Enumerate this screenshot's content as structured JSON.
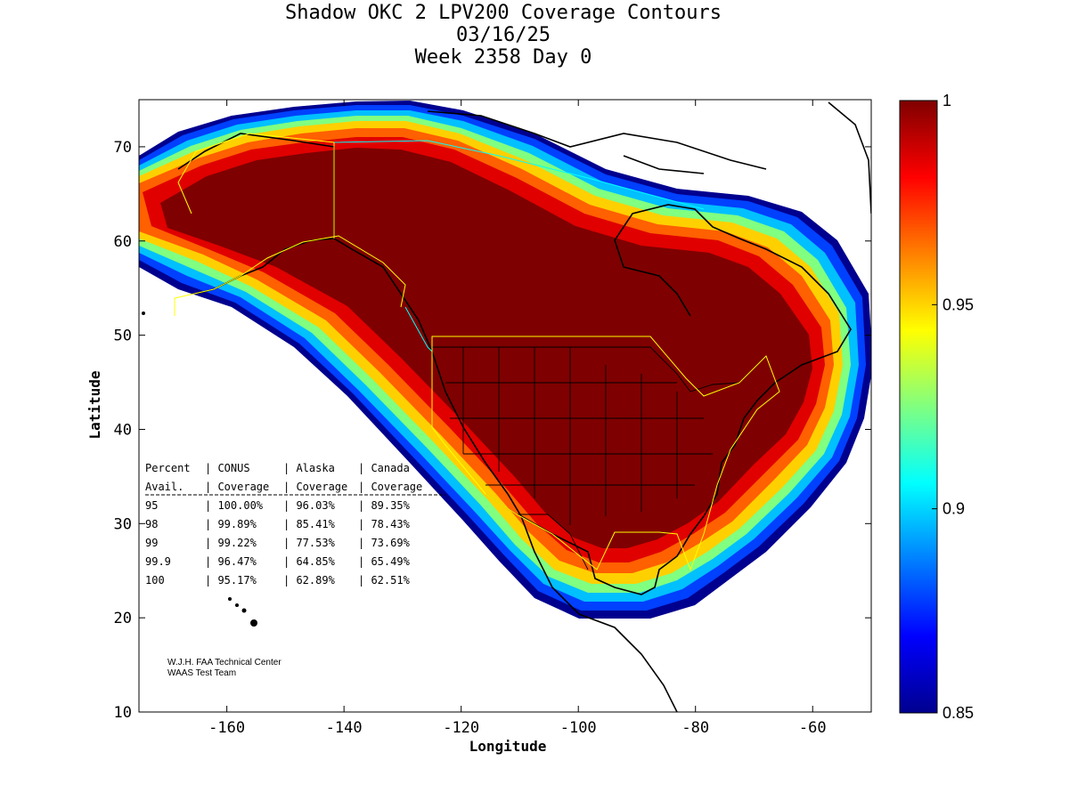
{
  "title": {
    "line1": "Shadow OKC 2 LPV200 Coverage Contours",
    "line2": "03/16/25",
    "line3": "Week 2358 Day 0"
  },
  "axes": {
    "xlabel": "Longitude",
    "ylabel": "Latitude",
    "x_ticks": [
      "-160",
      "-140",
      "-120",
      "-100",
      "-80",
      "-60"
    ],
    "y_ticks": [
      "70",
      "60",
      "50",
      "40",
      "30",
      "20",
      "10"
    ],
    "xlim": [
      -175,
      -50
    ],
    "ylim": [
      10,
      75
    ]
  },
  "colorbar": {
    "ticks": [
      "1",
      "0.95",
      "0.9",
      "0.85"
    ],
    "range": [
      0.85,
      1
    ],
    "colormap": "jet"
  },
  "coverage_table": {
    "header1": [
      "Percent",
      "CONUS",
      "Alaska",
      "Canada"
    ],
    "header2": [
      "Avail.",
      "Coverage",
      "Coverage",
      "Coverage"
    ],
    "rows": [
      [
        "95",
        "100.00%",
        "96.03%",
        "89.35%"
      ],
      [
        "98",
        "99.89%",
        "85.41%",
        "78.43%"
      ],
      [
        "99",
        "99.22%",
        "77.53%",
        "73.69%"
      ],
      [
        "99.9",
        "96.47%",
        "64.85%",
        "65.49%"
      ],
      [
        "100",
        "95.17%",
        "62.89%",
        "62.51%"
      ]
    ]
  },
  "credit": {
    "line1": "W.J.H. FAA Technical Center",
    "line2": "WAAS Test Team"
  },
  "colors": {
    "dark_red": "#7f0000",
    "red": "#ff0000",
    "orange": "#ff8000",
    "yellow": "#ffff00",
    "cyan": "#00ffff",
    "blue": "#0000ff",
    "navy": "#00008f"
  },
  "chart_data": {
    "type": "heatmap",
    "title": "Shadow OKC 2 LPV200 Coverage Contours",
    "xlabel": "Longitude",
    "ylabel": "Latitude",
    "xlim": [
      -175,
      -50
    ],
    "ylim": [
      10,
      75
    ],
    "colorbar_range": [
      0.85,
      1
    ],
    "description_values": "Coverage fraction contours from 0.85 (blue edge) to 1.0 (dark red core) over North America"
  }
}
